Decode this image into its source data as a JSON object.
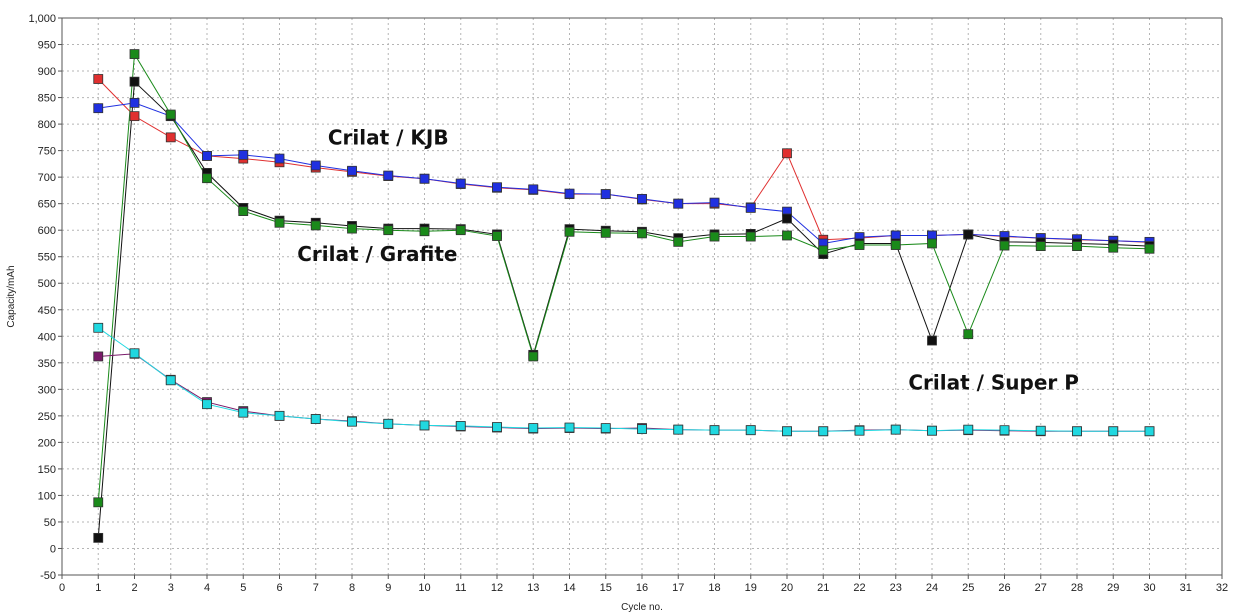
{
  "chart_data": {
    "type": "line",
    "title": "",
    "xlabel": "Cycle no.",
    "ylabel": "Capacity/mAh",
    "xlim": [
      0,
      32
    ],
    "ylim": [
      -50,
      1000
    ],
    "x_ticks": [
      0,
      1,
      2,
      3,
      4,
      5,
      6,
      7,
      8,
      9,
      10,
      11,
      12,
      13,
      14,
      15,
      16,
      17,
      18,
      19,
      20,
      21,
      22,
      23,
      24,
      25,
      26,
      27,
      28,
      29,
      30,
      31,
      32
    ],
    "y_ticks": [
      -50,
      0,
      50,
      100,
      150,
      200,
      250,
      300,
      350,
      400,
      450,
      500,
      550,
      600,
      650,
      700,
      750,
      800,
      850,
      900,
      950,
      1000
    ],
    "y_tick_labels": [
      "-50",
      "0",
      "50",
      "100",
      "150",
      "200",
      "250",
      "300",
      "350",
      "400",
      "450",
      "500",
      "550",
      "600",
      "650",
      "700",
      "750",
      "800",
      "850",
      "900",
      "950",
      "1,000"
    ],
    "grid": true,
    "annotations": [
      {
        "text": "Crilat / KJB",
        "x": 9,
        "y": 762
      },
      {
        "text": "Crilat / Grafite",
        "x": 8.7,
        "y": 542
      },
      {
        "text": "Crilat / Super P",
        "x": 25.7,
        "y": 300
      }
    ],
    "series": [
      {
        "color": "#e03030",
        "x": [
          1,
          2,
          3,
          4,
          5,
          6,
          7,
          8,
          9,
          10,
          11,
          12,
          13,
          14,
          15,
          16,
          17,
          18,
          19,
          20,
          21,
          22,
          23,
          24,
          25,
          26,
          27,
          28,
          29,
          30
        ],
        "values": [
          885,
          815,
          775,
          740,
          735,
          728,
          718,
          710,
          702,
          697,
          687,
          680,
          676,
          668,
          668,
          658,
          650,
          650,
          643,
          745,
          582,
          585,
          590,
          590,
          592,
          588,
          585,
          582,
          580,
          577
        ]
      },
      {
        "color": "#2030e0",
        "x": [
          1,
          2,
          3,
          4,
          5,
          6,
          7,
          8,
          9,
          10,
          11,
          12,
          13,
          14,
          15,
          16,
          17,
          18,
          19,
          20,
          21,
          22,
          23,
          24,
          25,
          26,
          27,
          28,
          29,
          30
        ],
        "values": [
          830,
          840,
          815,
          740,
          742,
          735,
          722,
          712,
          703,
          697,
          688,
          681,
          677,
          669,
          668,
          659,
          650,
          652,
          642,
          635,
          575,
          587,
          590,
          590,
          592,
          589,
          585,
          583,
          580,
          578
        ]
      },
      {
        "color": "#111111",
        "x": [
          1,
          2,
          3,
          4,
          5,
          6,
          7,
          8,
          9,
          10,
          11,
          12,
          13,
          14,
          15,
          16,
          17,
          18,
          19,
          20,
          21,
          22,
          23,
          24,
          25,
          26,
          27,
          28,
          29,
          30
        ],
        "values": [
          20,
          880,
          815,
          708,
          642,
          618,
          614,
          608,
          603,
          603,
          602,
          592,
          365,
          602,
          599,
          597,
          585,
          592,
          593,
          622,
          555,
          575,
          575,
          392,
          592,
          578,
          577,
          575,
          573,
          570
        ]
      },
      {
        "color": "#1a8a1a",
        "x": [
          1,
          2,
          3,
          4,
          5,
          6,
          7,
          8,
          9,
          10,
          11,
          12,
          13,
          14,
          15,
          16,
          17,
          18,
          19,
          20,
          21,
          22,
          23,
          24,
          25,
          26,
          27,
          28,
          29,
          30
        ],
        "values": [
          87,
          932,
          818,
          698,
          636,
          614,
          609,
          603,
          600,
          598,
          600,
          589,
          362,
          597,
          595,
          594,
          578,
          588,
          588,
          590,
          562,
          572,
          572,
          575,
          404,
          571,
          570,
          570,
          567,
          565
        ]
      },
      {
        "color": "#7a1a6a",
        "x": [
          1,
          2,
          3,
          4,
          5,
          6,
          7,
          8,
          9,
          10,
          11,
          12,
          13,
          14,
          15,
          16,
          17,
          18,
          19,
          20,
          21,
          22,
          23,
          24,
          25,
          26,
          27,
          28,
          29,
          30
        ],
        "values": [
          362,
          367,
          318,
          276,
          259,
          250,
          244,
          240,
          235,
          232,
          230,
          228,
          226,
          227,
          226,
          227,
          224,
          223,
          223,
          221,
          221,
          223,
          224,
          222,
          223,
          222,
          221,
          221,
          221,
          221
        ]
      },
      {
        "color": "#20d8e0",
        "x": [
          1,
          2,
          3,
          4,
          5,
          6,
          7,
          8,
          9,
          10,
          11,
          12,
          13,
          14,
          15,
          16,
          17,
          18,
          19,
          20,
          21,
          22,
          23,
          24,
          25,
          26,
          27,
          28,
          29,
          30
        ],
        "values": [
          416,
          368,
          317,
          272,
          256,
          250,
          244,
          239,
          235,
          232,
          231,
          229,
          227,
          228,
          227,
          225,
          224,
          223,
          223,
          221,
          221,
          222,
          224,
          222,
          224,
          223,
          222,
          221,
          221,
          221
        ]
      }
    ]
  }
}
